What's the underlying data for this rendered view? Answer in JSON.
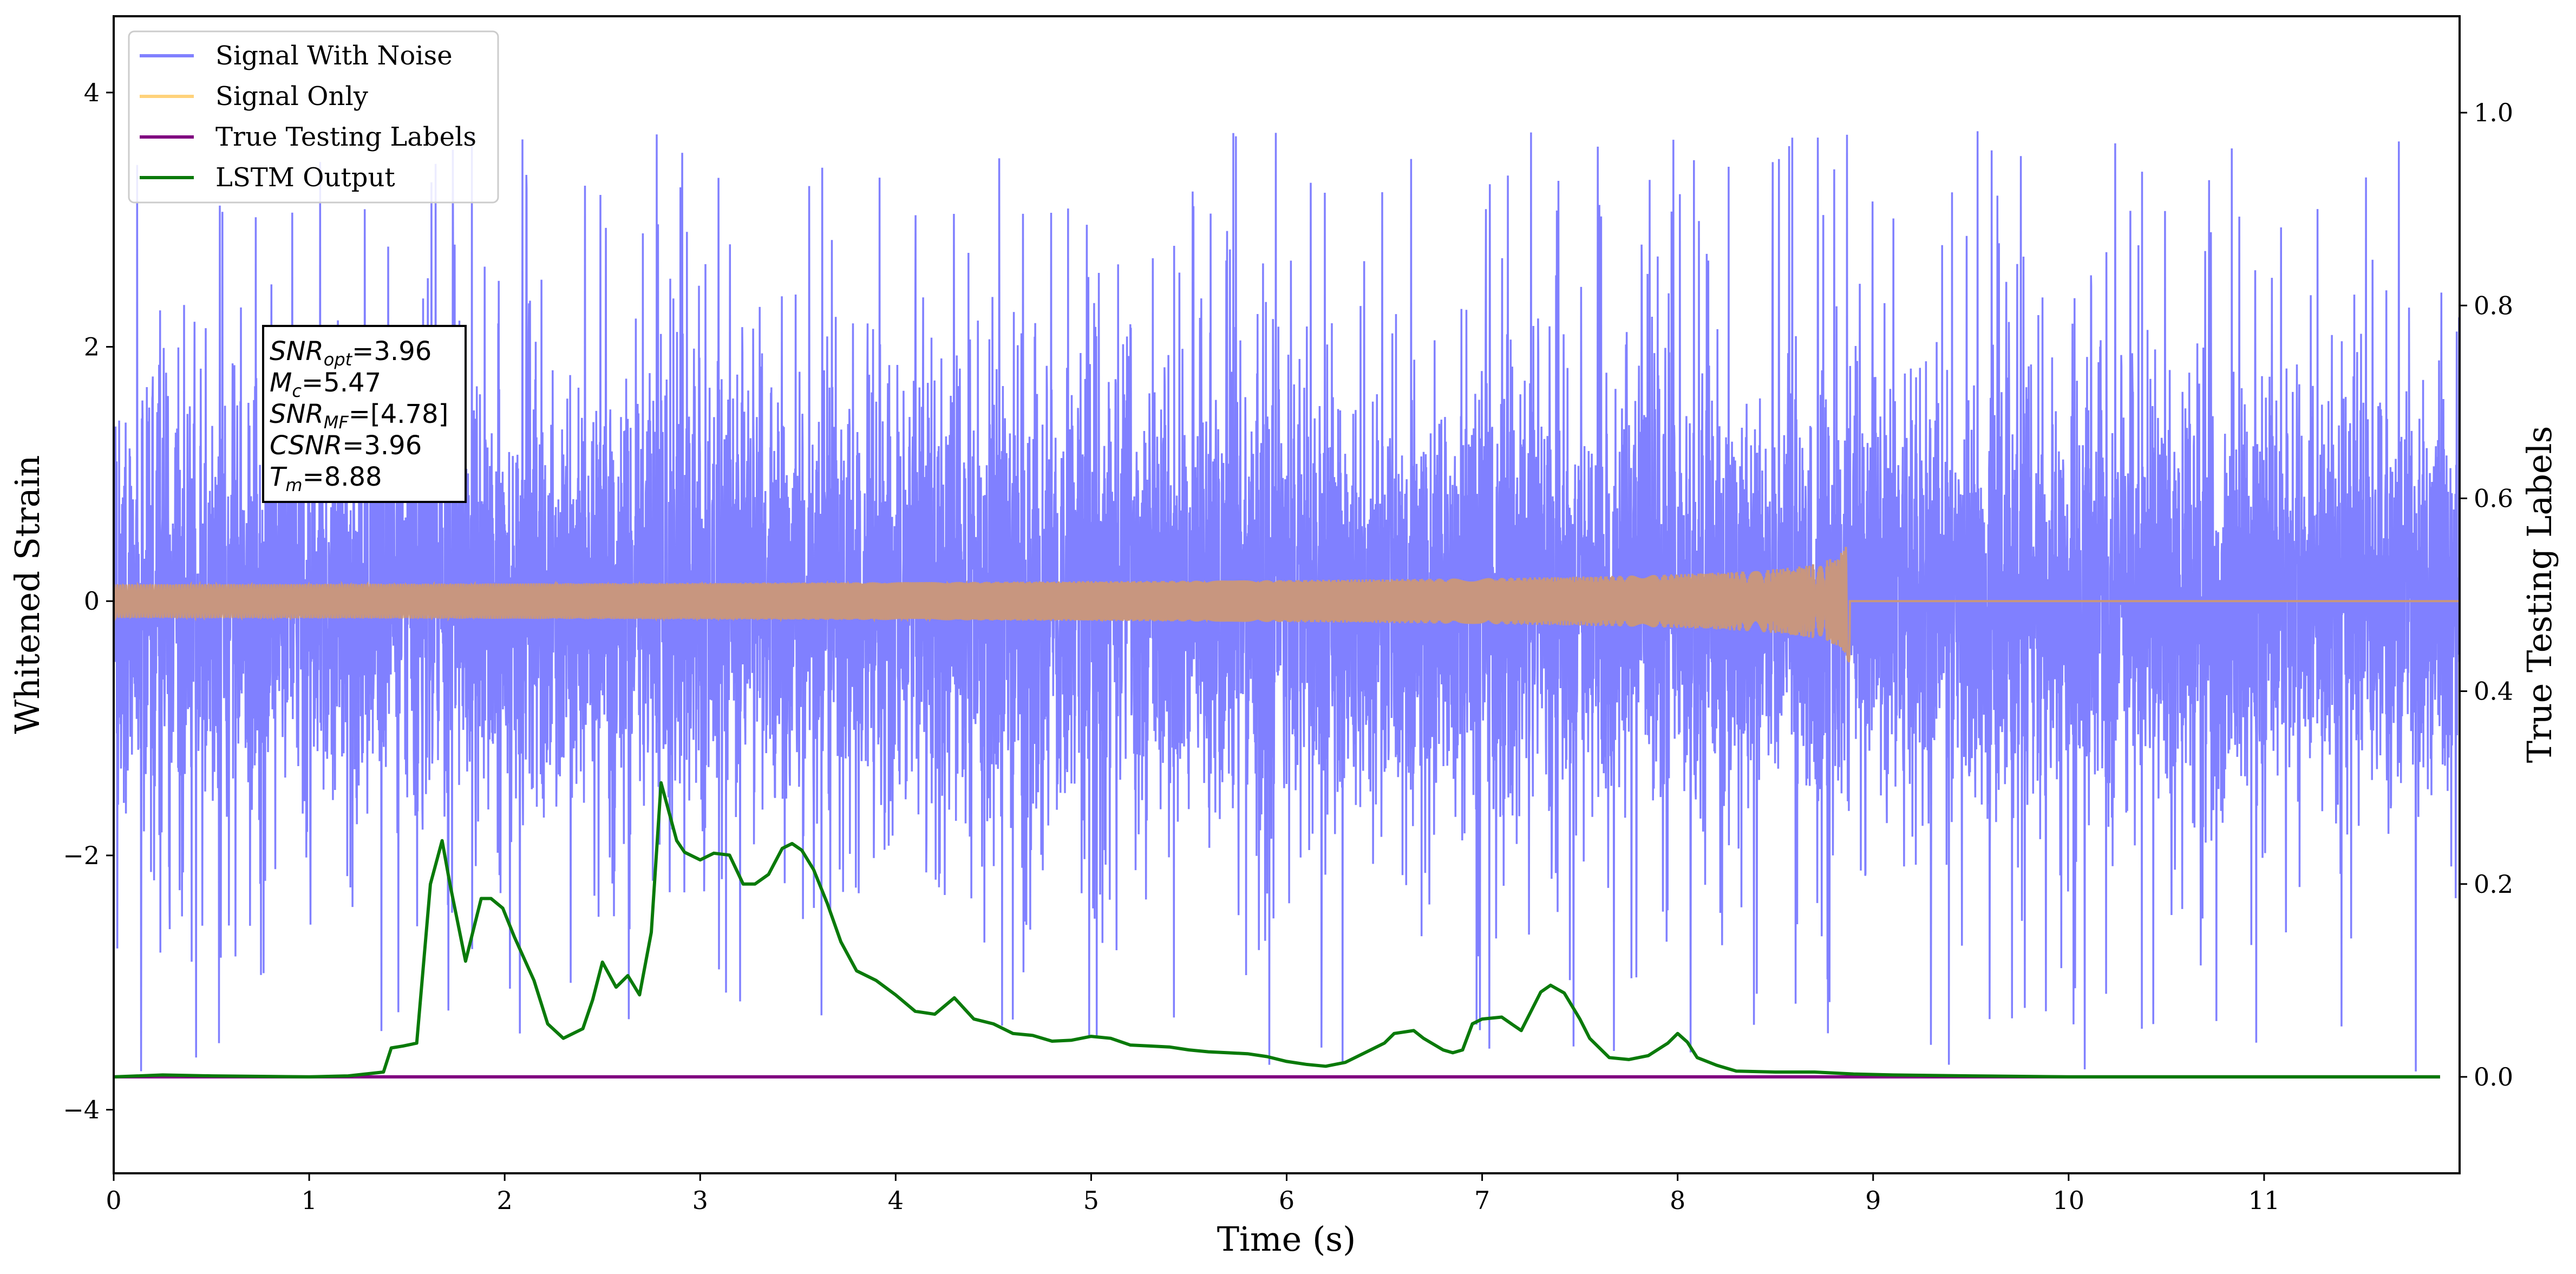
{
  "chart_data": {
    "type": "line",
    "xlabel": "Time (s)",
    "ylabel": "Whitened Strain",
    "y2label": "True Testing Labels",
    "xlim": [
      0,
      12
    ],
    "ylim": [
      -4.5,
      4.6
    ],
    "y2lim": [
      -0.1,
      1.1
    ],
    "x_ticks": [
      0,
      1,
      2,
      3,
      4,
      5,
      6,
      7,
      8,
      9,
      10,
      11
    ],
    "y_ticks": [
      -4,
      -2,
      0,
      2,
      4
    ],
    "y_tick_labels": [
      "−4",
      "−2",
      "0",
      "2",
      "4"
    ],
    "y2_ticks": [
      0.0,
      0.2,
      0.4,
      0.6,
      0.8,
      1.0
    ],
    "y2_tick_labels": [
      "0.0",
      "0.2",
      "0.4",
      "0.6",
      "0.8",
      "1.0"
    ],
    "legend_placement": "upper-left",
    "legend": [
      {
        "label": "Signal With Noise",
        "color": "#8080ff"
      },
      {
        "label": "Signal Only",
        "color": "#ffd27a"
      },
      {
        "label": "True Testing Labels",
        "color": "#800080"
      },
      {
        "label": "LSTM Output",
        "color": "#0a7a0a"
      }
    ],
    "annotation": {
      "lines": [
        {
          "name": "SNR",
          "sub": "opt",
          "value": "=3.96"
        },
        {
          "name": "M",
          "sub": "c",
          "value": "=5.47"
        },
        {
          "name": "SNR",
          "sub": "MF",
          "value": "=[4.78]"
        },
        {
          "name": "CSNR",
          "sub": "",
          "value": "=3.96"
        },
        {
          "name": "T",
          "sub": "m",
          "value": "=8.88"
        }
      ]
    },
    "series": [
      {
        "name": "Signal With Noise",
        "color": "#8080ff",
        "axis": "left",
        "description_envelope": {
          "x": [
            0,
            12
          ],
          "typical_range": [
            -1.5,
            1.5
          ],
          "peak_max": 4.2,
          "peak_min": -4.05
        }
      },
      {
        "name": "Signal Only",
        "color": "#c8967f",
        "axis": "left",
        "chirp": {
          "x_start": 0,
          "x_merger": 8.88,
          "amp_start": 0.03,
          "amp_merger": 0.5
        }
      },
      {
        "name": "True Testing Labels",
        "color": "#800080",
        "axis": "right",
        "x": [
          0,
          11.9
        ],
        "y": [
          0.0,
          0.0
        ]
      },
      {
        "name": "LSTM Output",
        "color": "#0a7a0a",
        "axis": "right",
        "x": [
          0,
          0.25,
          0.5,
          1.0,
          1.2,
          1.38,
          1.42,
          1.48,
          1.55,
          1.62,
          1.68,
          1.72,
          1.8,
          1.88,
          1.93,
          1.99,
          2.05,
          2.15,
          2.22,
          2.3,
          2.35,
          2.4,
          2.45,
          2.5,
          2.57,
          2.63,
          2.69,
          2.75,
          2.8,
          2.88,
          2.92,
          3.0,
          3.07,
          3.15,
          3.22,
          3.28,
          3.35,
          3.42,
          3.47,
          3.52,
          3.58,
          3.65,
          3.72,
          3.8,
          3.9,
          4.0,
          4.1,
          4.2,
          4.3,
          4.4,
          4.5,
          4.6,
          4.7,
          4.8,
          4.9,
          5.0,
          5.1,
          5.2,
          5.3,
          5.4,
          5.5,
          5.6,
          5.7,
          5.8,
          5.9,
          6.0,
          6.1,
          6.2,
          6.3,
          6.4,
          6.5,
          6.55,
          6.65,
          6.7,
          6.8,
          6.85,
          6.9,
          6.95,
          7.0,
          7.1,
          7.15,
          7.2,
          7.3,
          7.35,
          7.42,
          7.5,
          7.55,
          7.65,
          7.75,
          7.85,
          7.95,
          8.0,
          8.05,
          8.1,
          8.2,
          8.3,
          8.5,
          8.7,
          8.9,
          9.1,
          9.5,
          10.0,
          10.5,
          11.0,
          11.5,
          11.9
        ],
        "y": [
          0.0,
          0.002,
          0.001,
          0.0,
          0.001,
          0.005,
          0.03,
          0.032,
          0.035,
          0.2,
          0.245,
          0.2,
          0.12,
          0.185,
          0.185,
          0.175,
          0.145,
          0.1,
          0.055,
          0.04,
          0.045,
          0.05,
          0.08,
          0.119,
          0.093,
          0.105,
          0.085,
          0.15,
          0.305,
          0.245,
          0.233,
          0.225,
          0.232,
          0.23,
          0.2,
          0.2,
          0.21,
          0.237,
          0.242,
          0.235,
          0.215,
          0.18,
          0.14,
          0.11,
          0.1,
          0.085,
          0.068,
          0.065,
          0.082,
          0.06,
          0.055,
          0.045,
          0.043,
          0.037,
          0.038,
          0.042,
          0.04,
          0.033,
          0.032,
          0.031,
          0.028,
          0.026,
          0.025,
          0.024,
          0.021,
          0.016,
          0.013,
          0.011,
          0.015,
          0.025,
          0.035,
          0.045,
          0.048,
          0.04,
          0.028,
          0.025,
          0.028,
          0.055,
          0.06,
          0.062,
          0.055,
          0.048,
          0.088,
          0.095,
          0.087,
          0.06,
          0.04,
          0.02,
          0.018,
          0.022,
          0.035,
          0.045,
          0.036,
          0.02,
          0.012,
          0.006,
          0.005,
          0.005,
          0.003,
          0.002,
          0.001,
          0.0,
          0.0,
          0.0,
          0.0,
          0.0
        ]
      }
    ]
  }
}
